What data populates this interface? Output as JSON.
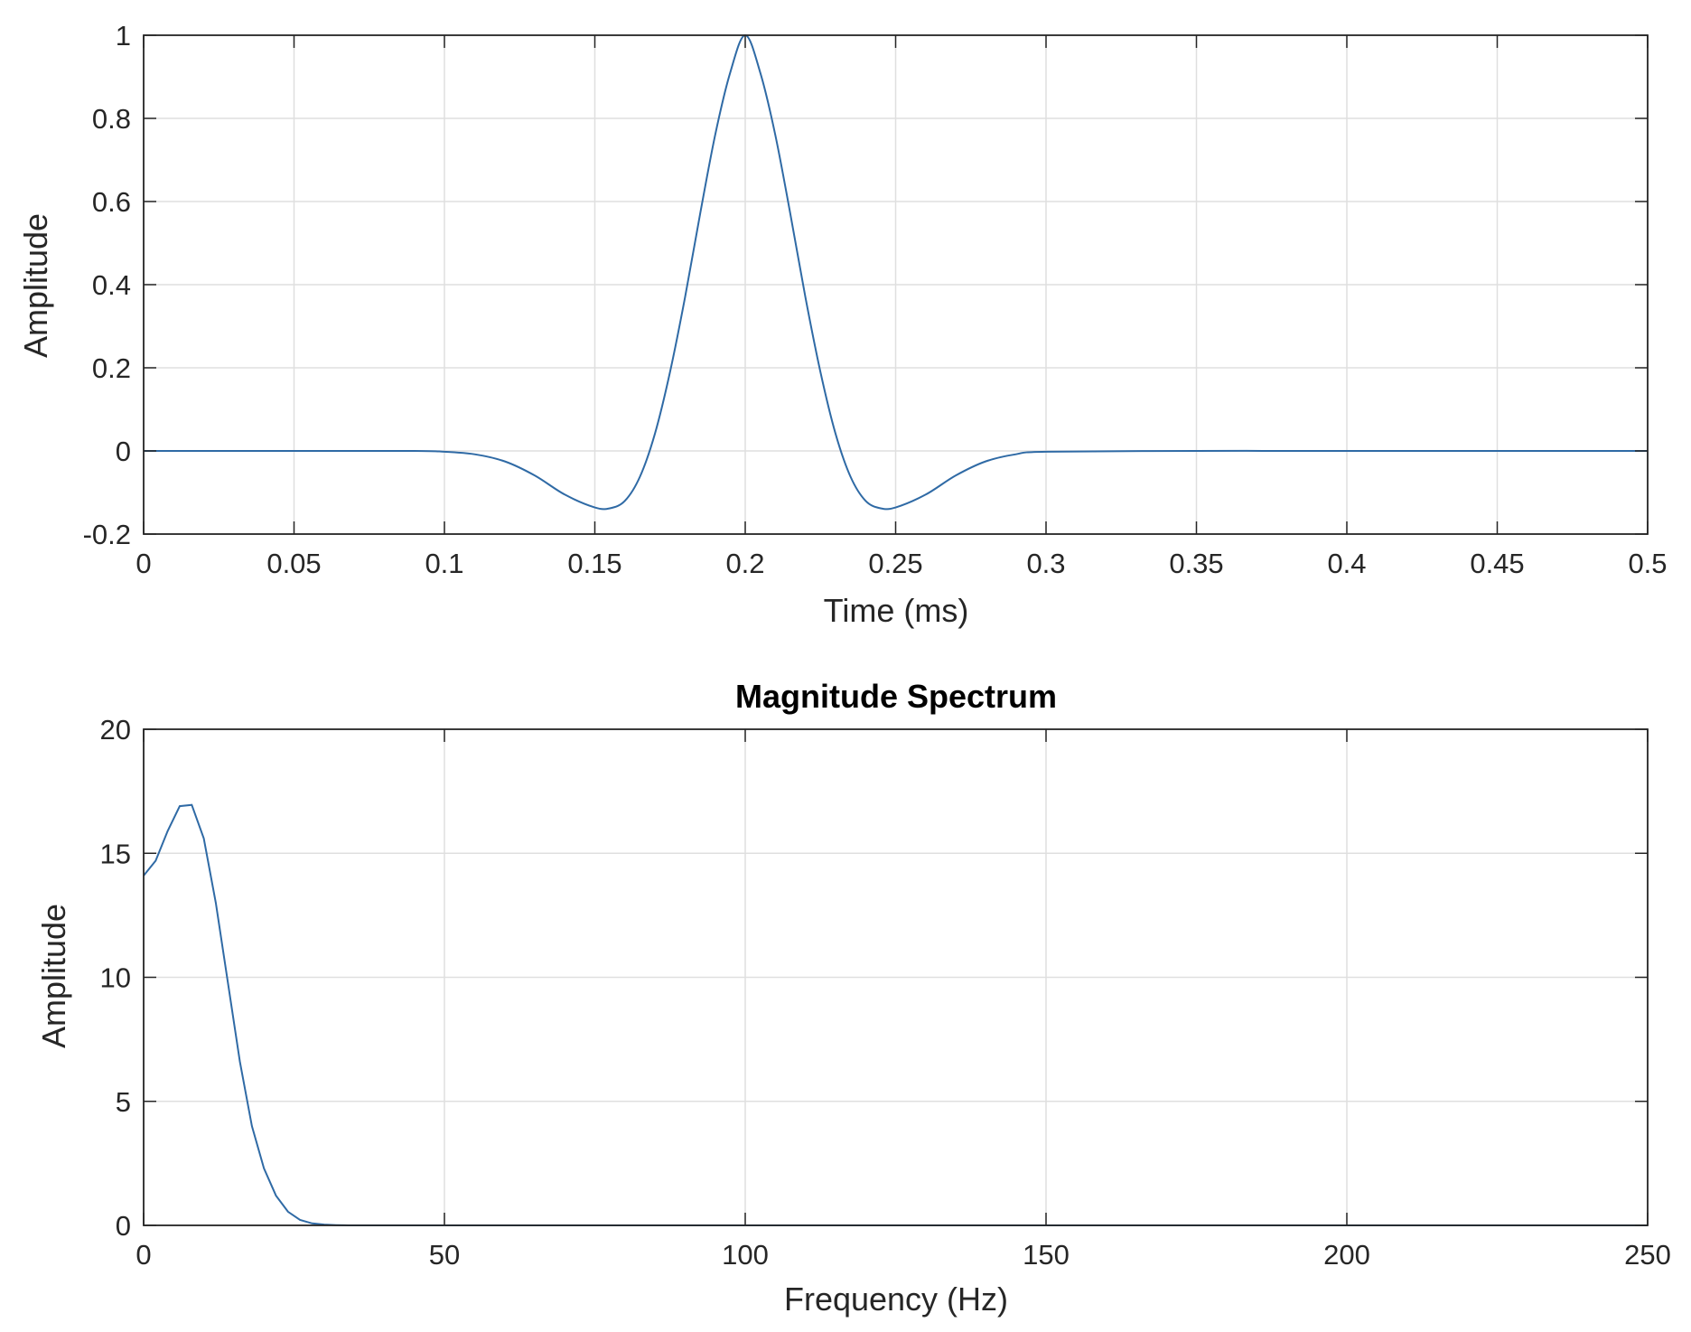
{
  "chart_data": [
    {
      "type": "line",
      "title": "",
      "xlabel": "Time (ms)",
      "ylabel": "Amplitude",
      "xlim": [
        0,
        0.5
      ],
      "ylim": [
        -0.2,
        1
      ],
      "x_ticks": [
        "0",
        "0.05",
        "0.1",
        "0.15",
        "0.2",
        "0.25",
        "0.3",
        "0.35",
        "0.4",
        "0.45",
        "0.5"
      ],
      "y_ticks": [
        "-0.2",
        "0",
        "0.2",
        "0.4",
        "0.6",
        "0.8",
        "1"
      ],
      "grid": true,
      "line_color": "#2f6aa5",
      "series": [
        {
          "x": [
            0,
            0.05,
            0.09,
            0.1,
            0.11,
            0.12,
            0.13,
            0.14,
            0.15,
            0.155,
            0.16,
            0.165,
            0.17,
            0.175,
            0.18,
            0.185,
            0.19,
            0.195,
            0.2,
            0.205,
            0.21,
            0.215,
            0.22,
            0.225,
            0.23,
            0.235,
            0.24,
            0.245,
            0.25,
            0.26,
            0.27,
            0.28,
            0.29,
            0.3,
            0.35,
            0.4,
            0.45,
            0.5
          ],
          "y": [
            0,
            0,
            0,
            -0.002,
            -0.008,
            -0.025,
            -0.059,
            -0.105,
            -0.136,
            -0.138,
            -0.12,
            -0.062,
            0.042,
            0.19,
            0.37,
            0.57,
            0.76,
            0.91,
            1.0,
            0.91,
            0.76,
            0.57,
            0.37,
            0.19,
            0.042,
            -0.062,
            -0.12,
            -0.138,
            -0.136,
            -0.105,
            -0.059,
            -0.025,
            -0.008,
            -0.002,
            0,
            0,
            0,
            0
          ]
        }
      ]
    },
    {
      "type": "line",
      "title": "Magnitude Spectrum",
      "xlabel": "Frequency (Hz)",
      "ylabel": "Amplitude",
      "xlim": [
        0,
        250
      ],
      "ylim": [
        0,
        20
      ],
      "x_ticks": [
        "0",
        "50",
        "100",
        "150",
        "200",
        "250"
      ],
      "y_ticks": [
        "0",
        "5",
        "10",
        "15",
        "20"
      ],
      "grid": true,
      "line_color": "#2f6aa5",
      "series": [
        {
          "x": [
            0,
            2,
            4,
            6,
            8,
            10,
            12,
            14,
            16,
            18,
            20,
            22,
            24,
            26,
            28,
            30,
            32,
            34,
            36,
            40,
            50,
            100,
            150,
            200,
            250
          ],
          "y": [
            14.1,
            14.7,
            15.9,
            16.9,
            16.95,
            15.6,
            13.0,
            9.8,
            6.6,
            4.0,
            2.3,
            1.2,
            0.55,
            0.22,
            0.08,
            0.03,
            0.01,
            0,
            0,
            0,
            0,
            0,
            0,
            0,
            0
          ]
        }
      ]
    }
  ]
}
